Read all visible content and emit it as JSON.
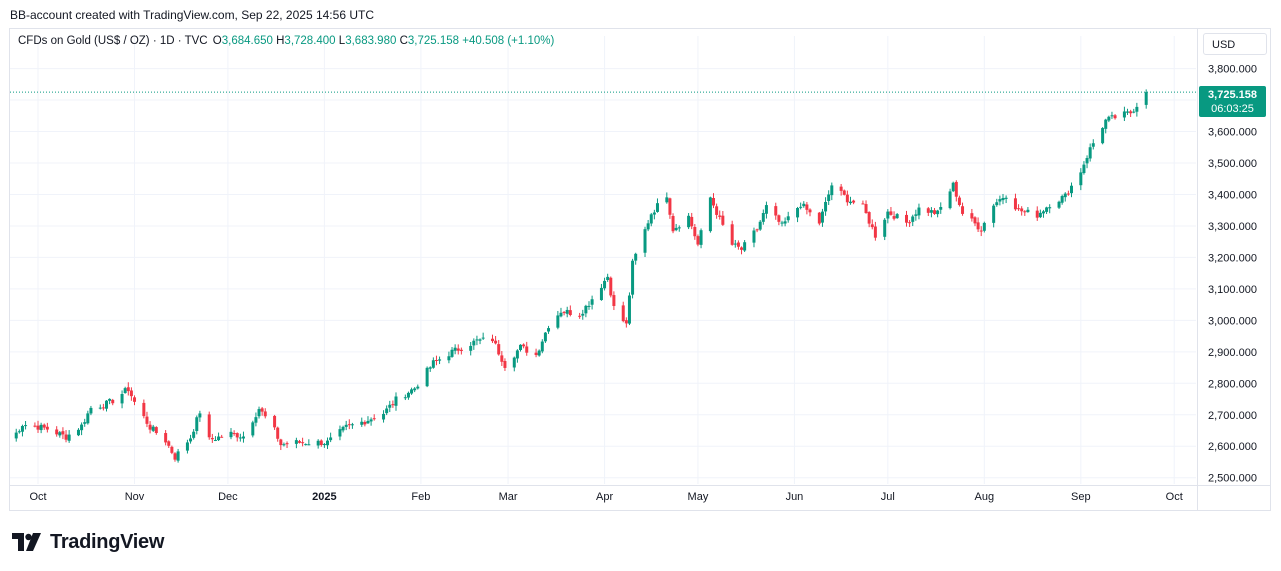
{
  "header": {
    "caption": "BB-account created with TradingView.com, Sep 22, 2025 14:56 UTC"
  },
  "legend": {
    "symbol": "CFDs on Gold (US$ / OZ) · 1D · TVC",
    "o_label": "O",
    "o_value": "3,684.650",
    "h_label": "H",
    "h_value": "3,728.400",
    "l_label": "L",
    "l_value": "3,683.980",
    "c_label": "C",
    "c_value": "3,725.158",
    "change": "+40.508 (+1.10%)"
  },
  "currency_button": {
    "label": "USD"
  },
  "last_price_tag": {
    "price": "3,725.158",
    "countdown": "06:03:25"
  },
  "footer": {
    "brand": "TradingView"
  },
  "colors": {
    "up": "#089981",
    "down": "#f23645",
    "grid": "#f0f3fa",
    "text": "#131722"
  },
  "chart_data": {
    "type": "candlestick",
    "ylim": [
      2480,
      3840
    ],
    "y_ticks": [
      "2,500.000",
      "2,600.000",
      "2,700.000",
      "2,800.000",
      "2,900.000",
      "3,000.000",
      "3,100.000",
      "3,200.000",
      "3,300.000",
      "3,400.000",
      "3,500.000",
      "3,600.000",
      "3,700.000",
      "3,800.000"
    ],
    "y_tick_values": [
      2500,
      2600,
      2700,
      2800,
      2900,
      3000,
      3100,
      3200,
      3300,
      3400,
      3500,
      3600,
      3700,
      3800
    ],
    "x_ticks": [
      {
        "label": "Oct",
        "date": "2024-10-01",
        "bold": false
      },
      {
        "label": "Nov",
        "date": "2024-11-01",
        "bold": false
      },
      {
        "label": "Dec",
        "date": "2024-12-01",
        "bold": false
      },
      {
        "label": "2025",
        "date": "2025-01-01",
        "bold": true
      },
      {
        "label": "Feb",
        "date": "2025-02-01",
        "bold": false
      },
      {
        "label": "Mar",
        "date": "2025-03-01",
        "bold": false
      },
      {
        "label": "Apr",
        "date": "2025-04-01",
        "bold": false
      },
      {
        "label": "May",
        "date": "2025-05-01",
        "bold": false
      },
      {
        "label": "Jun",
        "date": "2025-06-01",
        "bold": false
      },
      {
        "label": "Jul",
        "date": "2025-07-01",
        "bold": false
      },
      {
        "label": "Aug",
        "date": "2025-08-01",
        "bold": false
      },
      {
        "label": "Sep",
        "date": "2025-09-01",
        "bold": false
      },
      {
        "label": "Oct",
        "date": "2025-10-01",
        "bold": false
      }
    ],
    "x_range": [
      "2024-09-22",
      "2025-10-08"
    ],
    "last_price": 3725.158,
    "close_path": [
      [
        "2024-09-23",
        2628
      ],
      [
        "2024-09-26",
        2670
      ],
      [
        "2024-10-01",
        2662
      ],
      [
        "2024-10-04",
        2655
      ],
      [
        "2024-10-10",
        2630
      ],
      [
        "2024-10-15",
        2665
      ],
      [
        "2024-10-18",
        2722
      ],
      [
        "2024-10-23",
        2735
      ],
      [
        "2024-10-25",
        2745
      ],
      [
        "2024-10-30",
        2782
      ],
      [
        "2024-11-01",
        2740
      ],
      [
        "2024-11-06",
        2660
      ],
      [
        "2024-11-11",
        2618
      ],
      [
        "2024-11-14",
        2565
      ],
      [
        "2024-11-19",
        2628
      ],
      [
        "2024-11-22",
        2710
      ],
      [
        "2024-11-25",
        2620
      ],
      [
        "2024-12-02",
        2640
      ],
      [
        "2024-12-06",
        2632
      ],
      [
        "2024-12-11",
        2720
      ],
      [
        "2024-12-16",
        2650
      ],
      [
        "2024-12-18",
        2605
      ],
      [
        "2024-12-23",
        2612
      ],
      [
        "2025-01-02",
        2612
      ],
      [
        "2025-01-08",
        2660
      ],
      [
        "2025-01-14",
        2680
      ],
      [
        "2025-01-20",
        2705
      ],
      [
        "2025-01-24",
        2748
      ],
      [
        "2025-01-30",
        2785
      ],
      [
        "2025-02-05",
        2865
      ],
      [
        "2025-02-11",
        2900
      ],
      [
        "2025-02-19",
        2935
      ],
      [
        "2025-02-24",
        2940
      ],
      [
        "2025-02-28",
        2858
      ],
      [
        "2025-03-05",
        2915
      ],
      [
        "2025-03-10",
        2890
      ],
      [
        "2025-03-14",
        2985
      ],
      [
        "2025-03-18",
        3030
      ],
      [
        "2025-03-24",
        3020
      ],
      [
        "2025-03-27",
        3055
      ],
      [
        "2025-04-02",
        3140
      ],
      [
        "2025-04-04",
        3040
      ],
      [
        "2025-04-08",
        2985
      ],
      [
        "2025-04-10",
        3180
      ],
      [
        "2025-04-16",
        3340
      ],
      [
        "2025-04-21",
        3400
      ],
      [
        "2025-04-23",
        3290
      ],
      [
        "2025-04-28",
        3330
      ],
      [
        "2025-05-01",
        3240
      ],
      [
        "2025-05-05",
        3390
      ],
      [
        "2025-05-08",
        3320
      ],
      [
        "2025-05-12",
        3240
      ],
      [
        "2025-05-15",
        3225
      ],
      [
        "2025-05-20",
        3290
      ],
      [
        "2025-05-23",
        3360
      ],
      [
        "2025-05-28",
        3300
      ],
      [
        "2025-06-03",
        3370
      ],
      [
        "2025-06-09",
        3310
      ],
      [
        "2025-06-13",
        3430
      ],
      [
        "2025-06-18",
        3385
      ],
      [
        "2025-06-23",
        3360
      ],
      [
        "2025-06-27",
        3270
      ],
      [
        "2025-07-01",
        3345
      ],
      [
        "2025-07-07",
        3310
      ],
      [
        "2025-07-11",
        3355
      ],
      [
        "2025-07-17",
        3340
      ],
      [
        "2025-07-22",
        3430
      ],
      [
        "2025-07-25",
        3340
      ],
      [
        "2025-07-31",
        3290
      ],
      [
        "2025-08-04",
        3370
      ],
      [
        "2025-08-08",
        3400
      ],
      [
        "2025-08-12",
        3350
      ],
      [
        "2025-08-18",
        3335
      ],
      [
        "2025-08-22",
        3370
      ],
      [
        "2025-08-27",
        3395
      ],
      [
        "2025-09-01",
        3475
      ],
      [
        "2025-09-04",
        3545
      ],
      [
        "2025-09-09",
        3635
      ],
      [
        "2025-09-12",
        3645
      ],
      [
        "2025-09-17",
        3660
      ],
      [
        "2025-09-19",
        3684.65
      ],
      [
        "2025-09-22",
        3725.158
      ]
    ]
  }
}
